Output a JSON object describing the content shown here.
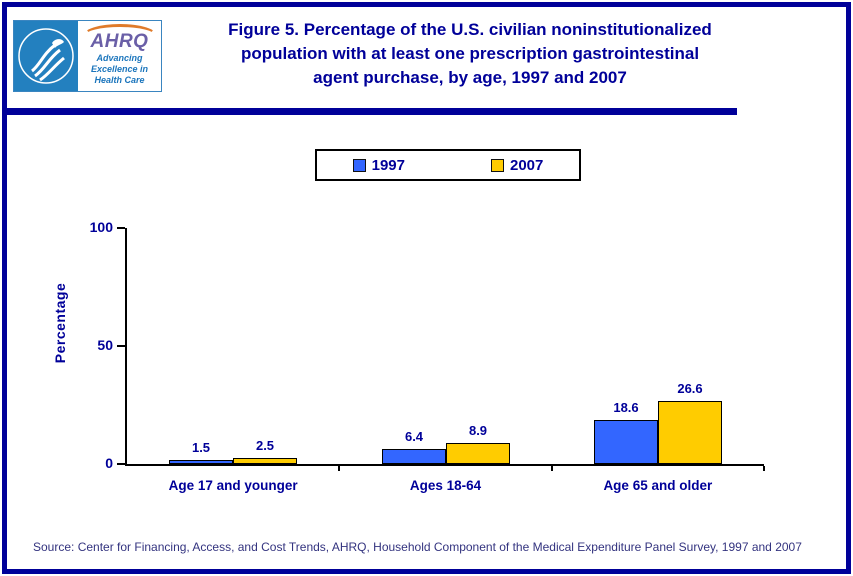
{
  "header": {
    "logo": {
      "hhs_seal": "hhs-eagle-seal",
      "ahrq_acronym": "AHRQ",
      "tagline_lines": [
        "Advancing",
        "Excellence in",
        "Health Care"
      ]
    },
    "title_lines": [
      "Figure 5. Percentage of the U.S. civilian noninstitutionalized",
      "population with at least one prescription gastrointestinal",
      "agent purchase, by age, 1997 and 2007"
    ]
  },
  "chart_data": {
    "type": "bar",
    "title": "Figure 5. Percentage of the U.S. civilian noninstitutionalized population with at least one prescription gastrointestinal agent purchase, by age, 1997 and 2007",
    "categories": [
      "Age 17 and younger",
      "Ages 18-64",
      "Age 65 and older"
    ],
    "series": [
      {
        "name": "1997",
        "color": "#3366FF",
        "values": [
          1.5,
          6.4,
          18.6
        ]
      },
      {
        "name": "2007",
        "color": "#FFCC00",
        "values": [
          2.5,
          8.9,
          26.6
        ]
      }
    ],
    "ylabel": "Percentage",
    "xlabel": "",
    "ylim": [
      0,
      100
    ],
    "yticks": [
      0,
      50,
      100
    ],
    "grid": false,
    "legend_position": "top-center",
    "data_labels": true
  },
  "footer": {
    "source": "Source: Center for Financing, Access, and Cost Trends, AHRQ, Household Component of the Medical Expenditure Panel Survey, 1997 and 2007"
  },
  "colors": {
    "accent_navy": "#000099",
    "bar_1997": "#3366FF",
    "bar_2007": "#FFCC00",
    "hhs_blue": "#2380BF",
    "ahrq_purple": "#6A5FA7",
    "swoosh_orange": "#E07B2A",
    "tagline_blue": "#1B75BC"
  }
}
